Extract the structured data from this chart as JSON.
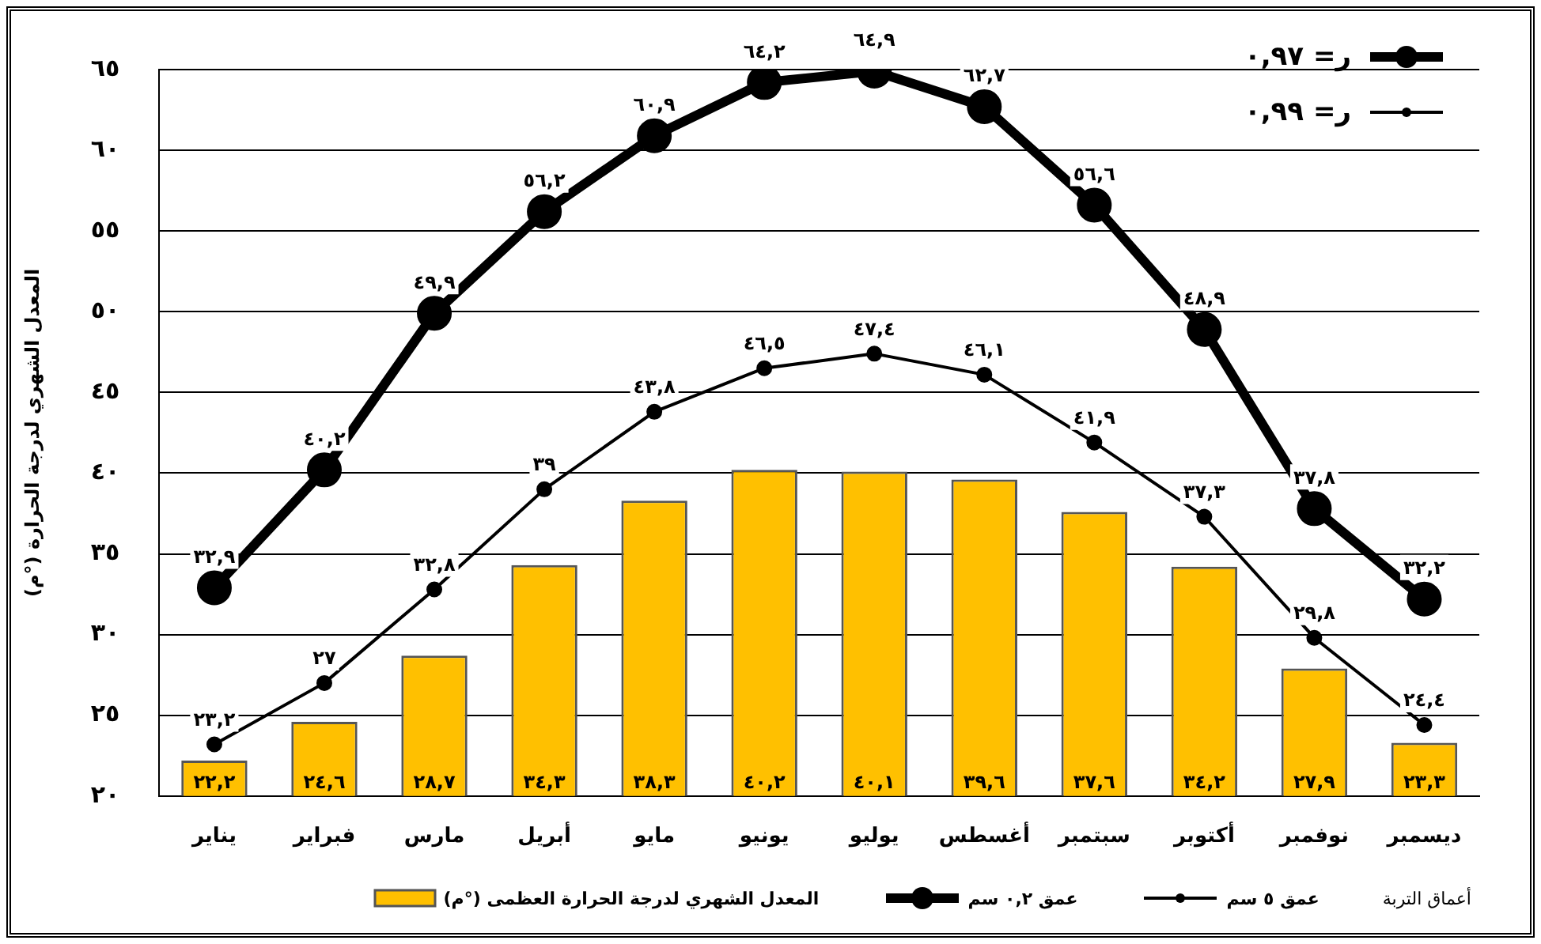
{
  "chart_data": {
    "type": "bar",
    "ylabel": "المعدل الشهري لدرجة الحرارة (°م)",
    "legend_title": "أعماق التربة",
    "categories": [
      "يناير",
      "فبراير",
      "مارس",
      "أبريل",
      "مايو",
      "يونيو",
      "يوليو",
      "أغسطس",
      "سبتمبر",
      "أكتوبر",
      "نوفمبر",
      "ديسمبر"
    ],
    "series": [
      {
        "name": "عمق ٥ سم",
        "type": "line",
        "color": "#000000",
        "values": [
          23.2,
          27,
          32.8,
          39,
          43.8,
          46.5,
          47.4,
          46.1,
          41.9,
          37.3,
          29.8,
          24.4
        ],
        "value_labels": [
          "٢٣,٢",
          "٢٧",
          "٣٢,٨",
          "٣٩",
          "٤٣,٨",
          "٤٦,٥",
          "٤٧,٤",
          "٤٦,١",
          "٤١,٩",
          "٣٧,٣",
          "٢٩,٨",
          "٢٤,٤"
        ]
      },
      {
        "name": "عمق ٠,٢ سم",
        "type": "line",
        "color": "#000000",
        "values": [
          32.9,
          40.2,
          49.9,
          56.2,
          60.9,
          64.2,
          64.9,
          62.7,
          56.6,
          48.9,
          37.8,
          32.2
        ],
        "value_labels": [
          "٣٢,٩",
          "٤٠,٢",
          "٤٩,٩",
          "٥٦,٢",
          "٦٠,٩",
          "٦٤,٢",
          "٦٤,٩",
          "٦٢,٧",
          "٥٦,٦",
          "٤٨,٩",
          "٣٧,٨",
          "٣٢,٢"
        ]
      },
      {
        "name": "المعدل الشهري لدرجة الحرارة العظمى (°م)",
        "color": "#ffc000",
        "values": [
          22.2,
          24.6,
          28.7,
          34.3,
          38.3,
          40.2,
          40.1,
          39.6,
          37.6,
          34.2,
          27.9,
          23.3
        ],
        "value_labels": [
          "٢٢,٢",
          "٢٤,٦",
          "٢٨,٧",
          "٣٤,٣",
          "٣٨,٣",
          "٤٠,٢",
          "٤٠,١",
          "٣٩,٦",
          "٣٧,٦",
          "٣٤,٢",
          "٢٧,٩",
          "٢٣,٣"
        ]
      }
    ],
    "ylim": [
      20,
      65
    ],
    "yticks": [
      {
        "value": 20,
        "label": "٢٠"
      },
      {
        "value": 25,
        "label": "٢٥"
      },
      {
        "value": 30,
        "label": "٣٠"
      },
      {
        "value": 35,
        "label": "٣٥"
      },
      {
        "value": 40,
        "label": "٤٠"
      },
      {
        "value": 45,
        "label": "٤٥"
      },
      {
        "value": 50,
        "label": "٥٠"
      },
      {
        "value": 55,
        "label": "٥٥"
      },
      {
        "value": 60,
        "label": "٦٠"
      },
      {
        "value": 65,
        "label": "٦٥"
      }
    ],
    "grid": "y",
    "legend": "bottom",
    "marker": "circle",
    "line_style": "solid",
    "annotations": [
      "ر= ٠,٩٧",
      "ر= ٠,٩٩"
    ]
  }
}
